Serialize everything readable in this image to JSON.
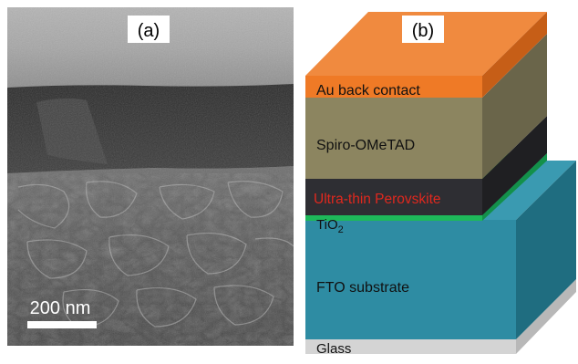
{
  "panel_a": {
    "label": "(a)",
    "scale_bar_label": "200 nm"
  },
  "panel_b": {
    "label": "(b)",
    "layers": {
      "au": "Au back contact",
      "spiro": "Spiro-OMeTAD",
      "perovskite": "Ultra-thin Perovskite",
      "tio2_base": "TiO",
      "tio2_sub": "2",
      "fto": "FTO substrate",
      "glass": "Glass"
    },
    "colors": {
      "au_front": "#EF7A26",
      "au_top": "#F08A3F",
      "spiro_front": "#8C8560",
      "perovskite_front": "#2E2E33",
      "perovskite_text": "#E0281E",
      "tio2": "#1EB85A",
      "fto_front": "#2E8CA3",
      "glass_front": "#D4D4D4"
    }
  }
}
